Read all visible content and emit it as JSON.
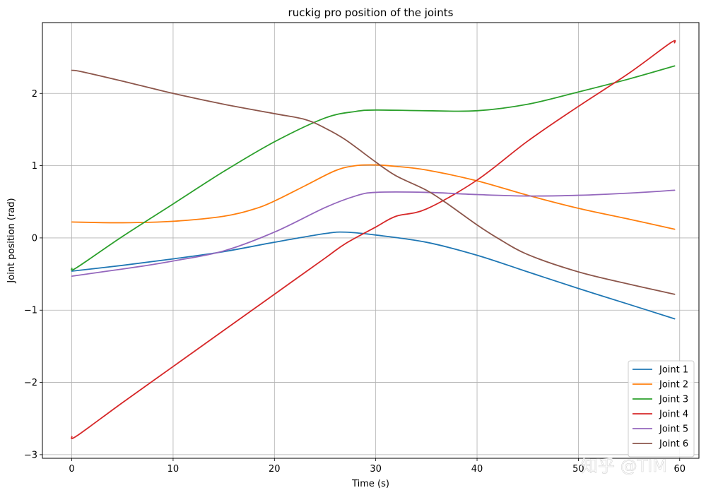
{
  "chart_data": {
    "type": "line",
    "title": "ruckig pro position of the joints",
    "xlabel": "Time (s)",
    "ylabel": "Joint position (rad)",
    "xlim": [
      -2.9,
      61.9
    ],
    "ylim": [
      -3.05,
      2.98
    ],
    "xticks": [
      0,
      10,
      20,
      30,
      40,
      50,
      60
    ],
    "yticks": [
      -3,
      -2,
      -1,
      0,
      1,
      2
    ],
    "xtick_labels": [
      "0",
      "10",
      "20",
      "30",
      "40",
      "50",
      "60"
    ],
    "ytick_labels": [
      "−3",
      "−2",
      "−1",
      "0",
      "1",
      "2"
    ],
    "grid": true,
    "legend_position": "lower right",
    "series": [
      {
        "name": "Joint 1",
        "color": "#1f77b4",
        "x": [
          0,
          5,
          10,
          15,
          20,
          25,
          27,
          30,
          35,
          40,
          45,
          50,
          55,
          59.5
        ],
        "y": [
          -0.46,
          -0.38,
          -0.29,
          -0.19,
          -0.06,
          0.06,
          0.08,
          0.04,
          -0.06,
          -0.24,
          -0.47,
          -0.7,
          -0.92,
          -1.12
        ]
      },
      {
        "name": "Joint 2",
        "color": "#ff7f0e",
        "x": [
          0,
          5,
          10,
          15,
          18,
          20,
          23,
          26,
          28,
          30,
          32,
          35,
          40,
          45,
          50,
          55,
          59.5
        ],
        "y": [
          0.22,
          0.21,
          0.23,
          0.3,
          0.4,
          0.51,
          0.72,
          0.93,
          1.0,
          1.01,
          0.99,
          0.94,
          0.79,
          0.59,
          0.41,
          0.26,
          0.12
        ]
      },
      {
        "name": "Joint 3",
        "color": "#2ca02c",
        "x": [
          0,
          0.5,
          5,
          10,
          15,
          20,
          25,
          28,
          30,
          35,
          40,
          45,
          50,
          55,
          59.5
        ],
        "y": [
          -0.42,
          -0.41,
          0.02,
          0.47,
          0.92,
          1.33,
          1.66,
          1.75,
          1.77,
          1.76,
          1.76,
          1.85,
          2.02,
          2.2,
          2.38
        ]
      },
      {
        "name": "Joint 4",
        "color": "#d62728",
        "x": [
          0,
          0.5,
          5,
          10,
          15,
          20,
          25,
          27,
          30,
          32,
          35,
          40,
          45,
          50,
          55,
          59.1,
          59.5
        ],
        "y": [
          -2.75,
          -2.74,
          -2.28,
          -1.78,
          -1.28,
          -0.78,
          -0.28,
          -0.08,
          0.15,
          0.3,
          0.4,
          0.8,
          1.34,
          1.82,
          2.28,
          2.7,
          2.7
        ]
      },
      {
        "name": "Joint 5",
        "color": "#9467bd",
        "x": [
          0,
          3,
          7,
          10,
          15,
          20,
          25,
          28,
          30,
          35,
          40,
          45,
          50,
          55,
          59.5
        ],
        "y": [
          -0.53,
          -0.47,
          -0.39,
          -0.32,
          -0.18,
          0.08,
          0.42,
          0.58,
          0.63,
          0.63,
          0.6,
          0.58,
          0.59,
          0.62,
          0.66
        ]
      },
      {
        "name": "Joint 6",
        "color": "#8c564b",
        "x": [
          0,
          1,
          5,
          10,
          15,
          20,
          23,
          25,
          27,
          30,
          32,
          35,
          37,
          40,
          42,
          45,
          50,
          55,
          59.5
        ],
        "y": [
          2.32,
          2.3,
          2.17,
          2.0,
          1.85,
          1.72,
          1.64,
          1.52,
          1.36,
          1.05,
          0.86,
          0.66,
          0.48,
          0.18,
          0.0,
          -0.23,
          -0.47,
          -0.64,
          -0.78
        ]
      }
    ]
  },
  "watermark": "知乎 @TIM"
}
